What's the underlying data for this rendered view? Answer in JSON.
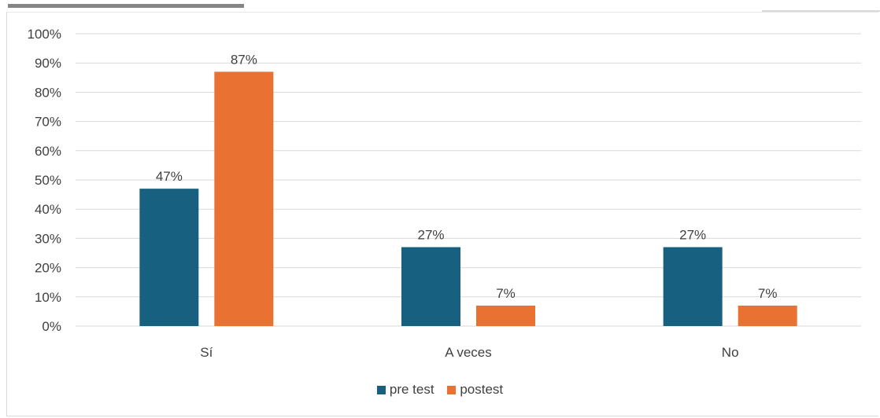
{
  "chart_data": {
    "type": "bar",
    "categories": [
      "Sí",
      "A veces",
      "No"
    ],
    "series": [
      {
        "name": "pre test",
        "values": [
          47,
          27,
          27
        ],
        "labels": [
          "47%",
          "27%",
          "27%"
        ],
        "color": "#17607f"
      },
      {
        "name": "postest",
        "values": [
          87,
          7,
          7
        ],
        "labels": [
          "87%",
          "7%",
          "7%"
        ],
        "color": "#e97132"
      }
    ],
    "ylim": [
      0,
      100
    ],
    "yticks": [
      "0%",
      "10%",
      "20%",
      "30%",
      "40%",
      "50%",
      "60%",
      "70%",
      "80%",
      "90%",
      "100%"
    ],
    "grid": true,
    "legend_position": "bottom"
  }
}
